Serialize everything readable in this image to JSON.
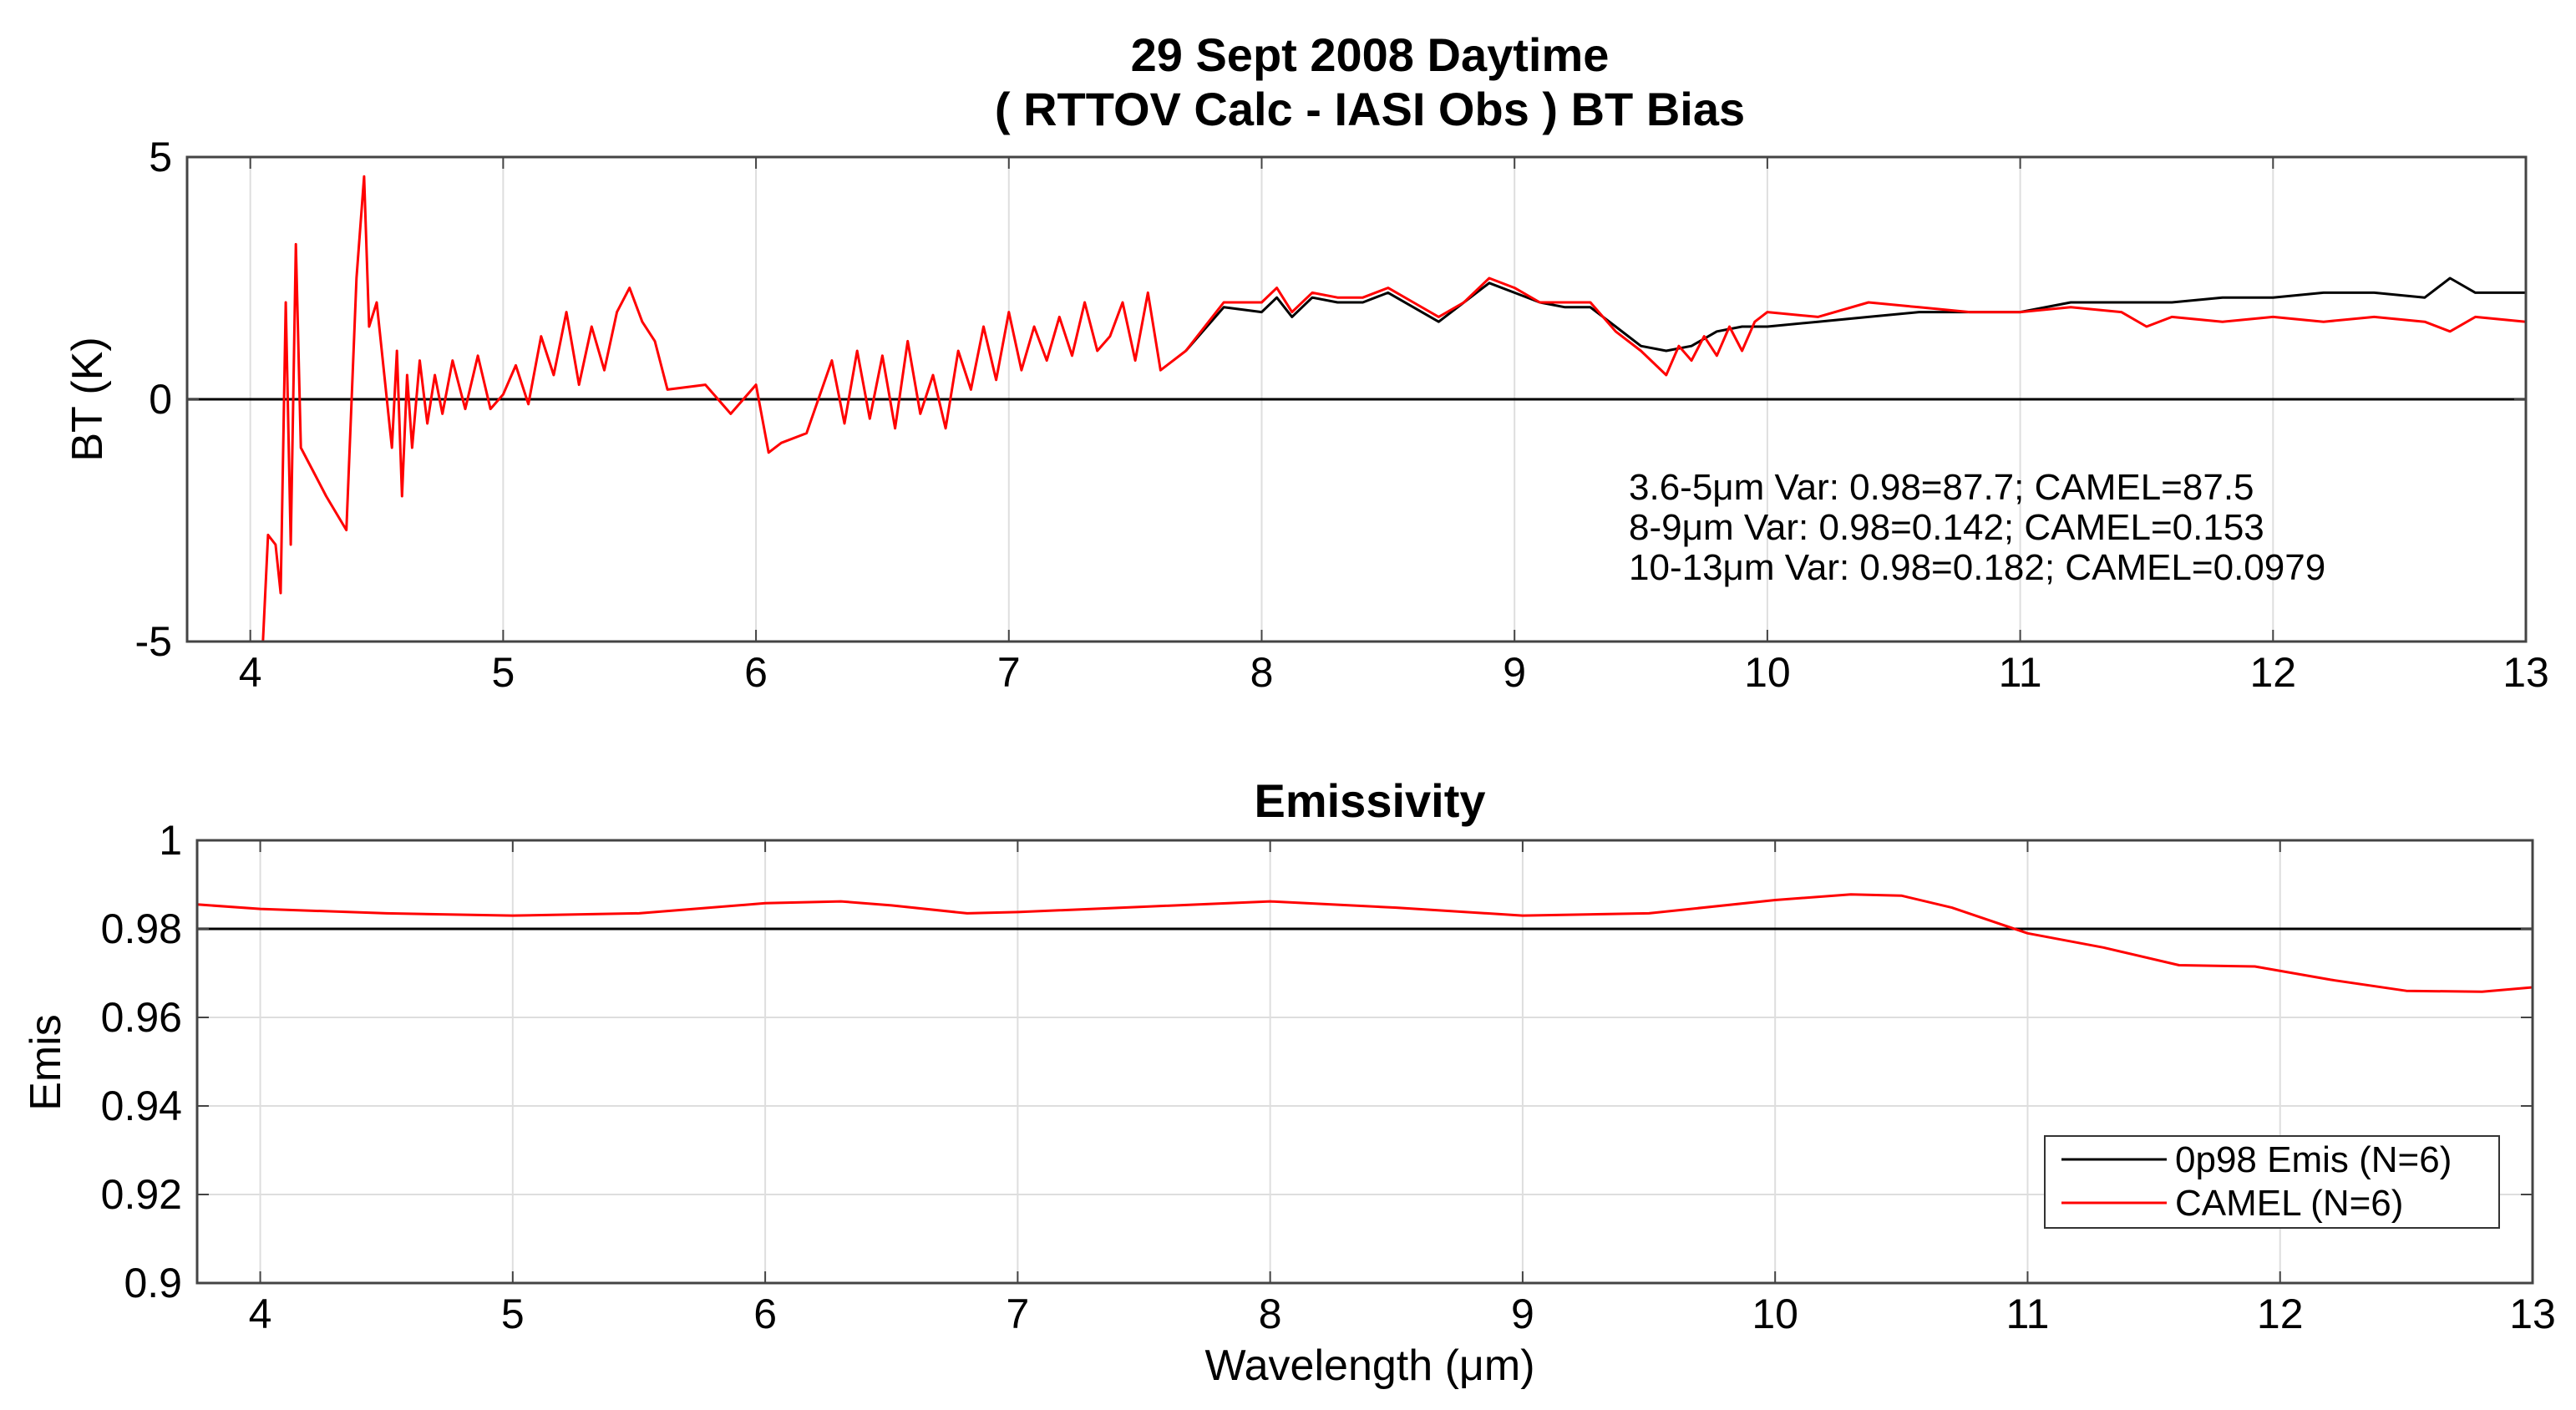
{
  "chart_data": [
    {
      "type": "line",
      "title": "29 Sept 2008 Daytime",
      "subtitle": "( RTTOV Calc - IASI Obs ) BT Bias",
      "xlabel": "",
      "ylabel": "BT (K)",
      "xlim": [
        3.75,
        13
      ],
      "ylim": [
        -5,
        5
      ],
      "xticks": [
        4,
        5,
        6,
        7,
        8,
        9,
        10,
        11,
        12,
        13
      ],
      "xtick_labels": [
        "4",
        "5",
        "6",
        "7",
        "8",
        "9",
        "10",
        "11",
        "12",
        "13"
      ],
      "yticks": [
        -5,
        0,
        5
      ],
      "ytick_labels": [
        "-5",
        "0",
        "5"
      ],
      "grid": "vertical",
      "reference_line": {
        "y": 0,
        "color": "#000000"
      },
      "annotation_lines": [
        "3.6-5μm Var:  0.98=87.7;   CAMEL=87.5",
        "8-9μm Var:     0.98=0.142; CAMEL=0.153",
        "10-13μm Var: 0.98=0.182; CAMEL=0.0979"
      ],
      "series": [
        {
          "name": "0p98 Emis (N=6)",
          "color": "#000000",
          "x": [
            7.7,
            7.85,
            8.0,
            8.06,
            8.12,
            8.2,
            8.3,
            8.4,
            8.5,
            8.6,
            8.7,
            8.8,
            8.9,
            9.0,
            9.1,
            9.2,
            9.3,
            9.4,
            9.5,
            9.6,
            9.7,
            9.8,
            9.9,
            10.0,
            10.2,
            10.4,
            10.6,
            10.8,
            11.0,
            11.2,
            11.4,
            11.6,
            11.8,
            12.0,
            12.2,
            12.4,
            12.6,
            12.7,
            12.8,
            13.0
          ],
          "values": [
            1.0,
            1.9,
            1.8,
            2.1,
            1.7,
            2.1,
            2.0,
            2.0,
            2.2,
            1.9,
            1.6,
            2.0,
            2.4,
            2.2,
            2.0,
            1.9,
            1.9,
            1.5,
            1.1,
            1.0,
            1.1,
            1.4,
            1.5,
            1.5,
            1.6,
            1.7,
            1.8,
            1.8,
            1.8,
            2.0,
            2.0,
            2.0,
            2.1,
            2.1,
            2.2,
            2.2,
            2.1,
            2.5,
            2.2,
            2.2
          ]
        },
        {
          "name": "CAMEL (N=6)",
          "color": "#ff0000",
          "x": [
            4.05,
            4.07,
            4.1,
            4.12,
            4.14,
            4.16,
            4.18,
            4.2,
            4.25,
            4.3,
            4.38,
            4.42,
            4.45,
            4.47,
            4.5,
            4.53,
            4.56,
            4.58,
            4.6,
            4.62,
            4.64,
            4.67,
            4.7,
            4.73,
            4.76,
            4.8,
            4.85,
            4.9,
            4.95,
            5.0,
            5.05,
            5.1,
            5.15,
            5.2,
            5.25,
            5.3,
            5.35,
            5.4,
            5.45,
            5.5,
            5.55,
            5.6,
            5.65,
            5.8,
            5.9,
            6.0,
            6.05,
            6.1,
            6.2,
            6.3,
            6.35,
            6.4,
            6.45,
            6.5,
            6.55,
            6.6,
            6.65,
            6.7,
            6.75,
            6.8,
            6.85,
            6.9,
            6.95,
            7.0,
            7.05,
            7.1,
            7.15,
            7.2,
            7.25,
            7.3,
            7.35,
            7.4,
            7.45,
            7.5,
            7.55,
            7.6,
            7.7,
            7.85,
            8.0,
            8.06,
            8.12,
            8.2,
            8.3,
            8.4,
            8.5,
            8.6,
            8.7,
            8.8,
            8.9,
            9.0,
            9.1,
            9.2,
            9.3,
            9.4,
            9.5,
            9.6,
            9.65,
            9.7,
            9.75,
            9.8,
            9.85,
            9.9,
            9.95,
            10.0,
            10.2,
            10.4,
            10.6,
            10.8,
            11.0,
            11.2,
            11.4,
            11.5,
            11.6,
            11.8,
            12.0,
            12.2,
            12.4,
            12.6,
            12.7,
            12.8,
            13.0
          ],
          "values": [
            -5.0,
            -2.8,
            -3.0,
            -4.0,
            2.0,
            -3.0,
            3.2,
            -1.0,
            -1.5,
            -2.0,
            -2.7,
            2.5,
            4.6,
            1.5,
            2.0,
            0.5,
            -1.0,
            1.0,
            -2.0,
            0.5,
            -1.0,
            0.8,
            -0.5,
            0.5,
            -0.3,
            0.8,
            -0.2,
            0.9,
            -0.2,
            0.1,
            0.7,
            -0.1,
            1.3,
            0.5,
            1.8,
            0.3,
            1.5,
            0.6,
            1.8,
            2.3,
            1.6,
            1.2,
            0.2,
            0.3,
            -0.3,
            0.3,
            -1.1,
            -0.9,
            -0.7,
            0.8,
            -0.5,
            1.0,
            -0.4,
            0.9,
            -0.6,
            1.2,
            -0.3,
            0.5,
            -0.6,
            1.0,
            0.2,
            1.5,
            0.4,
            1.8,
            0.6,
            1.5,
            0.8,
            1.7,
            0.9,
            2.0,
            1.0,
            1.3,
            2.0,
            0.8,
            2.2,
            0.6,
            1.0,
            2.0,
            2.0,
            2.3,
            1.8,
            2.2,
            2.1,
            2.1,
            2.3,
            2.0,
            1.7,
            2.0,
            2.5,
            2.3,
            2.0,
            2.0,
            2.0,
            1.4,
            1.0,
            0.5,
            1.1,
            0.8,
            1.3,
            0.9,
            1.5,
            1.0,
            1.6,
            1.8,
            1.7,
            2.0,
            1.9,
            1.8,
            1.8,
            1.9,
            1.8,
            1.5,
            1.7,
            1.6,
            1.7,
            1.6,
            1.7,
            1.6,
            1.4,
            1.7,
            1.6
          ]
        }
      ]
    },
    {
      "type": "line",
      "title": "Emissivity",
      "xlabel": "Wavelength (μm)",
      "ylabel": "Emis",
      "xlim": [
        3.75,
        13
      ],
      "ylim": [
        0.9,
        1.0
      ],
      "xticks": [
        4,
        5,
        6,
        7,
        8,
        9,
        10,
        11,
        12,
        13
      ],
      "xtick_labels": [
        "4",
        "5",
        "6",
        "7",
        "8",
        "9",
        "10",
        "11",
        "12",
        "13"
      ],
      "yticks": [
        0.9,
        0.92,
        0.94,
        0.96,
        0.98,
        1.0
      ],
      "ytick_labels": [
        "0.9",
        "0.92",
        "0.94",
        "0.96",
        "0.98",
        "1"
      ],
      "grid": "both",
      "legend_position": "bottom-right",
      "series": [
        {
          "name": "0p98 Emis (N=6)",
          "color": "#000000",
          "x": [
            3.75,
            13.0
          ],
          "values": [
            0.98,
            0.98
          ]
        },
        {
          "name": "CAMEL (N=6)",
          "color": "#ff0000",
          "x": [
            3.75,
            4.0,
            4.5,
            5.0,
            5.5,
            6.0,
            6.3,
            6.5,
            6.8,
            7.0,
            7.5,
            8.0,
            8.5,
            9.0,
            9.5,
            10.0,
            10.3,
            10.5,
            10.7,
            11.0,
            11.3,
            11.6,
            11.9,
            12.2,
            12.5,
            12.8,
            13.0
          ],
          "values": [
            0.9855,
            0.9845,
            0.9835,
            0.983,
            0.9835,
            0.9858,
            0.9862,
            0.9853,
            0.9835,
            0.9838,
            0.985,
            0.9862,
            0.9848,
            0.983,
            0.9835,
            0.9865,
            0.9878,
            0.9875,
            0.9848,
            0.979,
            0.9758,
            0.9718,
            0.9715,
            0.9685,
            0.966,
            0.9658,
            0.9668
          ]
        }
      ]
    }
  ]
}
